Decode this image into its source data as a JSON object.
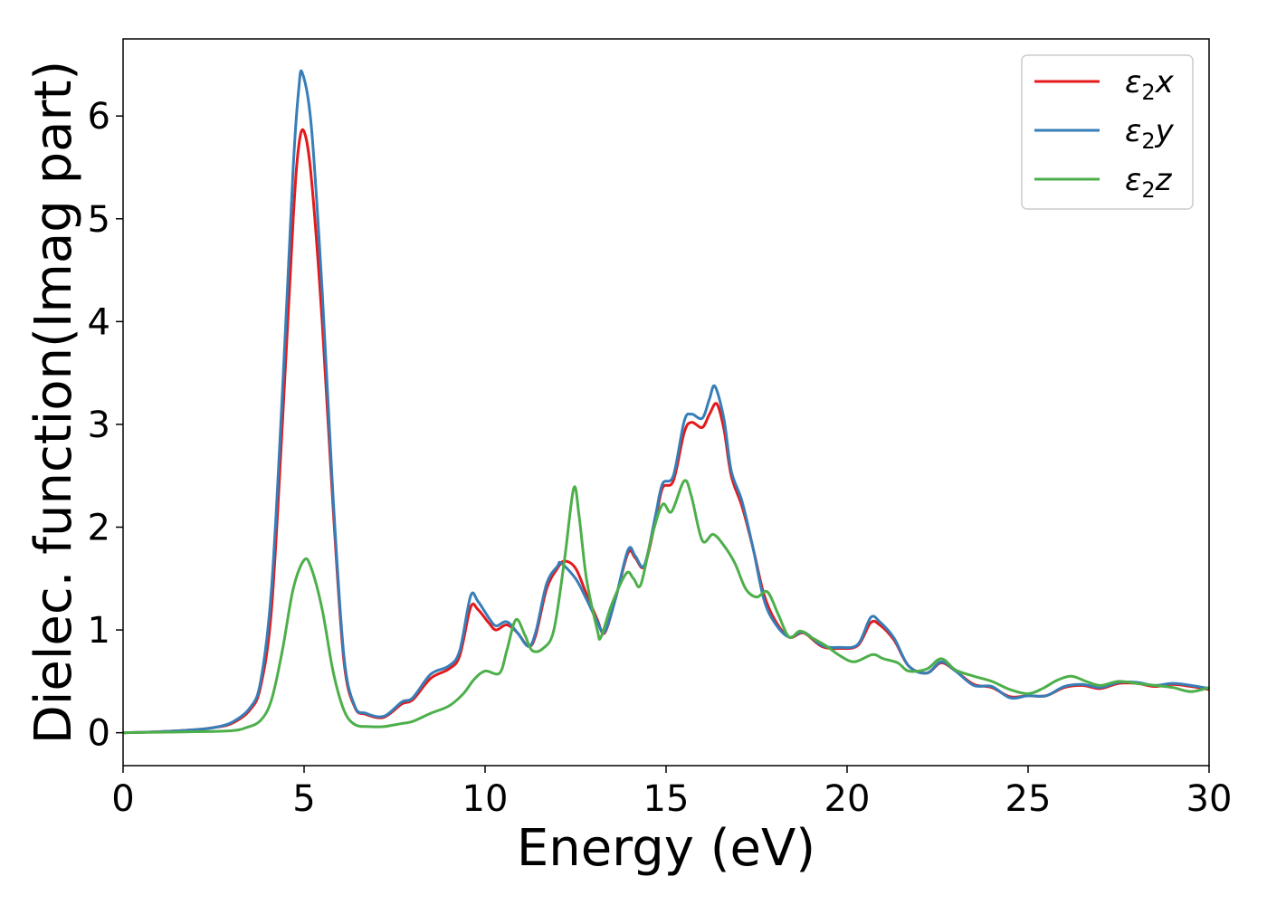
{
  "chart_data": {
    "type": "line",
    "xlabel": "Energy (eV)",
    "ylabel": "Dielec. function(Imag part)",
    "xlim": [
      0,
      30
    ],
    "ylim": [
      -0.32,
      6.75
    ],
    "xticks": [
      0,
      5,
      10,
      15,
      20,
      25,
      30
    ],
    "yticks": [
      0,
      1,
      2,
      3,
      4,
      5,
      6
    ],
    "grid": false,
    "legend_position": "top-right",
    "series": [
      {
        "name": "ε₂x",
        "legend": {
          "base": "ε",
          "sub": "2",
          "suffix": "x"
        },
        "color": "#e41a1c",
        "points": [
          [
            0,
            0
          ],
          [
            1,
            0.01
          ],
          [
            2,
            0.03
          ],
          [
            2.5,
            0.05
          ],
          [
            3,
            0.09
          ],
          [
            3.5,
            0.22
          ],
          [
            3.8,
            0.45
          ],
          [
            4.1,
            1.2
          ],
          [
            4.4,
            3.0
          ],
          [
            4.7,
            5.0
          ],
          [
            4.85,
            5.7
          ],
          [
            5.0,
            5.85
          ],
          [
            5.2,
            5.4
          ],
          [
            5.5,
            4.0
          ],
          [
            5.8,
            2.2
          ],
          [
            6.1,
            0.7
          ],
          [
            6.4,
            0.25
          ],
          [
            6.7,
            0.18
          ],
          [
            7.2,
            0.15
          ],
          [
            7.7,
            0.28
          ],
          [
            8.0,
            0.32
          ],
          [
            8.5,
            0.53
          ],
          [
            9.0,
            0.62
          ],
          [
            9.3,
            0.75
          ],
          [
            9.6,
            1.22
          ],
          [
            9.8,
            1.2
          ],
          [
            10.1,
            1.07
          ],
          [
            10.3,
            1.0
          ],
          [
            10.6,
            1.05
          ],
          [
            10.9,
            0.97
          ],
          [
            11.2,
            0.84
          ],
          [
            11.4,
            0.95
          ],
          [
            11.7,
            1.4
          ],
          [
            12.0,
            1.6
          ],
          [
            12.2,
            1.67
          ],
          [
            12.5,
            1.6
          ],
          [
            12.8,
            1.35
          ],
          [
            13.1,
            1.1
          ],
          [
            13.3,
            0.97
          ],
          [
            13.6,
            1.3
          ],
          [
            13.95,
            1.75
          ],
          [
            14.15,
            1.7
          ],
          [
            14.4,
            1.62
          ],
          [
            14.7,
            2.05
          ],
          [
            14.9,
            2.38
          ],
          [
            15.2,
            2.45
          ],
          [
            15.5,
            2.92
          ],
          [
            15.7,
            3.02
          ],
          [
            16.0,
            2.97
          ],
          [
            16.2,
            3.1
          ],
          [
            16.4,
            3.2
          ],
          [
            16.6,
            2.95
          ],
          [
            16.8,
            2.5
          ],
          [
            17.1,
            2.2
          ],
          [
            17.4,
            1.8
          ],
          [
            17.7,
            1.35
          ],
          [
            18.0,
            1.1
          ],
          [
            18.4,
            0.93
          ],
          [
            18.8,
            0.97
          ],
          [
            19.3,
            0.84
          ],
          [
            19.8,
            0.82
          ],
          [
            20.3,
            0.85
          ],
          [
            20.65,
            1.07
          ],
          [
            20.9,
            1.05
          ],
          [
            21.3,
            0.9
          ],
          [
            21.7,
            0.65
          ],
          [
            22.2,
            0.58
          ],
          [
            22.6,
            0.68
          ],
          [
            23.0,
            0.6
          ],
          [
            23.5,
            0.47
          ],
          [
            24.0,
            0.44
          ],
          [
            24.5,
            0.35
          ],
          [
            25.0,
            0.36
          ],
          [
            25.5,
            0.36
          ],
          [
            26.0,
            0.44
          ],
          [
            26.5,
            0.46
          ],
          [
            27.0,
            0.43
          ],
          [
            27.5,
            0.48
          ],
          [
            28.0,
            0.48
          ],
          [
            28.5,
            0.45
          ],
          [
            29.0,
            0.47
          ],
          [
            29.5,
            0.45
          ],
          [
            30.0,
            0.42
          ]
        ]
      },
      {
        "name": "ε₂y",
        "legend": {
          "base": "ε",
          "sub": "2",
          "suffix": "y"
        },
        "color": "#377eb8",
        "points": [
          [
            0,
            0
          ],
          [
            1,
            0.01
          ],
          [
            2,
            0.03
          ],
          [
            2.5,
            0.05
          ],
          [
            3,
            0.1
          ],
          [
            3.5,
            0.24
          ],
          [
            3.8,
            0.5
          ],
          [
            4.1,
            1.4
          ],
          [
            4.4,
            3.3
          ],
          [
            4.7,
            5.5
          ],
          [
            4.85,
            6.25
          ],
          [
            4.95,
            6.42
          ],
          [
            5.2,
            5.9
          ],
          [
            5.5,
            4.3
          ],
          [
            5.8,
            2.3
          ],
          [
            6.1,
            0.75
          ],
          [
            6.4,
            0.26
          ],
          [
            6.7,
            0.19
          ],
          [
            7.2,
            0.16
          ],
          [
            7.7,
            0.3
          ],
          [
            8.0,
            0.34
          ],
          [
            8.5,
            0.57
          ],
          [
            9.0,
            0.65
          ],
          [
            9.3,
            0.8
          ],
          [
            9.6,
            1.33
          ],
          [
            9.8,
            1.28
          ],
          [
            10.1,
            1.12
          ],
          [
            10.3,
            1.04
          ],
          [
            10.6,
            1.08
          ],
          [
            10.9,
            0.97
          ],
          [
            11.2,
            0.84
          ],
          [
            11.4,
            0.98
          ],
          [
            11.7,
            1.45
          ],
          [
            12.0,
            1.62
          ],
          [
            12.1,
            1.65
          ],
          [
            12.5,
            1.5
          ],
          [
            12.8,
            1.3
          ],
          [
            13.1,
            1.08
          ],
          [
            13.3,
            0.98
          ],
          [
            13.6,
            1.3
          ],
          [
            13.95,
            1.78
          ],
          [
            14.15,
            1.72
          ],
          [
            14.4,
            1.63
          ],
          [
            14.7,
            2.1
          ],
          [
            14.9,
            2.42
          ],
          [
            15.2,
            2.5
          ],
          [
            15.5,
            3.03
          ],
          [
            15.7,
            3.1
          ],
          [
            16.0,
            3.06
          ],
          [
            16.2,
            3.25
          ],
          [
            16.35,
            3.37
          ],
          [
            16.6,
            3.05
          ],
          [
            16.8,
            2.55
          ],
          [
            17.1,
            2.25
          ],
          [
            17.4,
            1.8
          ],
          [
            17.7,
            1.3
          ],
          [
            18.0,
            1.07
          ],
          [
            18.4,
            0.93
          ],
          [
            18.8,
            0.98
          ],
          [
            19.3,
            0.85
          ],
          [
            19.8,
            0.83
          ],
          [
            20.3,
            0.86
          ],
          [
            20.65,
            1.12
          ],
          [
            20.9,
            1.08
          ],
          [
            21.3,
            0.92
          ],
          [
            21.7,
            0.65
          ],
          [
            22.2,
            0.58
          ],
          [
            22.6,
            0.69
          ],
          [
            23.0,
            0.6
          ],
          [
            23.5,
            0.46
          ],
          [
            24.0,
            0.45
          ],
          [
            24.5,
            0.34
          ],
          [
            25.0,
            0.36
          ],
          [
            25.5,
            0.36
          ],
          [
            26.0,
            0.45
          ],
          [
            26.5,
            0.47
          ],
          [
            27.0,
            0.44
          ],
          [
            27.5,
            0.49
          ],
          [
            28.0,
            0.49
          ],
          [
            28.5,
            0.46
          ],
          [
            29.0,
            0.48
          ],
          [
            29.5,
            0.46
          ],
          [
            30.0,
            0.43
          ]
        ]
      },
      {
        "name": "ε₂z",
        "legend": {
          "base": "ε",
          "sub": "2",
          "suffix": "z"
        },
        "color": "#4daf4a",
        "points": [
          [
            0,
            0
          ],
          [
            1,
            0.005
          ],
          [
            2,
            0.01
          ],
          [
            3,
            0.02
          ],
          [
            3.4,
            0.05
          ],
          [
            3.8,
            0.12
          ],
          [
            4.1,
            0.32
          ],
          [
            4.4,
            0.8
          ],
          [
            4.7,
            1.4
          ],
          [
            5.0,
            1.68
          ],
          [
            5.2,
            1.6
          ],
          [
            5.5,
            1.2
          ],
          [
            5.8,
            0.6
          ],
          [
            6.1,
            0.22
          ],
          [
            6.4,
            0.08
          ],
          [
            6.8,
            0.06
          ],
          [
            7.2,
            0.06
          ],
          [
            7.7,
            0.09
          ],
          [
            8.0,
            0.11
          ],
          [
            8.5,
            0.19
          ],
          [
            9.0,
            0.26
          ],
          [
            9.4,
            0.38
          ],
          [
            9.7,
            0.52
          ],
          [
            10.0,
            0.6
          ],
          [
            10.4,
            0.58
          ],
          [
            10.6,
            0.8
          ],
          [
            10.85,
            1.1
          ],
          [
            11.1,
            0.95
          ],
          [
            11.3,
            0.8
          ],
          [
            11.6,
            0.82
          ],
          [
            11.9,
            1.0
          ],
          [
            12.2,
            1.7
          ],
          [
            12.45,
            2.38
          ],
          [
            12.6,
            2.1
          ],
          [
            12.8,
            1.5
          ],
          [
            13.1,
            1.0
          ],
          [
            13.2,
            0.93
          ],
          [
            13.5,
            1.25
          ],
          [
            13.9,
            1.55
          ],
          [
            14.1,
            1.5
          ],
          [
            14.3,
            1.44
          ],
          [
            14.6,
            1.9
          ],
          [
            14.9,
            2.22
          ],
          [
            15.15,
            2.15
          ],
          [
            15.5,
            2.45
          ],
          [
            15.7,
            2.3
          ],
          [
            16.0,
            1.87
          ],
          [
            16.3,
            1.93
          ],
          [
            16.6,
            1.82
          ],
          [
            16.9,
            1.65
          ],
          [
            17.2,
            1.4
          ],
          [
            17.5,
            1.32
          ],
          [
            17.8,
            1.37
          ],
          [
            18.1,
            1.15
          ],
          [
            18.4,
            0.93
          ],
          [
            18.7,
            0.99
          ],
          [
            19.0,
            0.93
          ],
          [
            19.4,
            0.85
          ],
          [
            19.8,
            0.75
          ],
          [
            20.2,
            0.69
          ],
          [
            20.7,
            0.76
          ],
          [
            21.0,
            0.72
          ],
          [
            21.4,
            0.68
          ],
          [
            21.7,
            0.6
          ],
          [
            22.2,
            0.62
          ],
          [
            22.6,
            0.72
          ],
          [
            23.0,
            0.61
          ],
          [
            23.5,
            0.55
          ],
          [
            24.0,
            0.5
          ],
          [
            24.5,
            0.42
          ],
          [
            25.0,
            0.38
          ],
          [
            25.4,
            0.43
          ],
          [
            25.8,
            0.51
          ],
          [
            26.2,
            0.55
          ],
          [
            26.6,
            0.5
          ],
          [
            27.0,
            0.46
          ],
          [
            27.5,
            0.5
          ],
          [
            28.0,
            0.48
          ],
          [
            28.5,
            0.46
          ],
          [
            29.0,
            0.44
          ],
          [
            29.5,
            0.4
          ],
          [
            30.0,
            0.44
          ]
        ]
      }
    ]
  }
}
